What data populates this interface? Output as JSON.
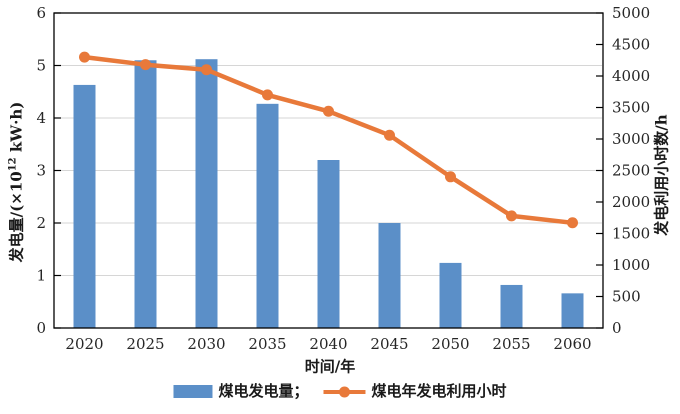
{
  "chart_data": {
    "type": "bar+line",
    "categories": [
      "2020",
      "2025",
      "2030",
      "2035",
      "2040",
      "2045",
      "2050",
      "2055",
      "2060"
    ],
    "series": [
      {
        "name": "煤电发电量",
        "type": "bar",
        "axis": "left",
        "color": "#5B8FC8",
        "values": [
          4.63,
          5.1,
          5.12,
          4.27,
          3.2,
          2.0,
          1.24,
          0.82,
          0.66
        ]
      },
      {
        "name": "煤电年发电利用小时",
        "type": "line",
        "axis": "right",
        "color": "#E8793A",
        "values": [
          4300,
          4180,
          4100,
          3700,
          3440,
          3060,
          2400,
          1780,
          1670
        ]
      }
    ],
    "x_axis": {
      "title": "时间/年",
      "tick_labels": [
        "2020",
        "2025",
        "2030",
        "2035",
        "2040",
        "2045",
        "2050",
        "2055",
        "2060"
      ]
    },
    "y_axis_left": {
      "title": "发电量/(×10¹² kW·h)",
      "title_parts": {
        "pre": "发电量/(×10",
        "sup": "12",
        "post": " kW·h)"
      },
      "min": 0,
      "max": 6,
      "step": 1,
      "tick_labels": [
        "0",
        "1",
        "2",
        "3",
        "4",
        "5",
        "6"
      ]
    },
    "y_axis_right": {
      "title": "发电利用小时数/h",
      "min": 0,
      "max": 5000,
      "step": 500,
      "tick_labels": [
        "0",
        "500",
        "1000",
        "1500",
        "2000",
        "2500",
        "3000",
        "3500",
        "4000",
        "4500",
        "5000"
      ]
    },
    "legend": {
      "position": "bottom",
      "items": [
        {
          "label": "煤电发电量；",
          "swatch": "bar",
          "series_index": 0
        },
        {
          "label": "煤电年发电利用小时",
          "swatch": "line-marker",
          "series_index": 1
        }
      ]
    },
    "grid": {
      "horizontal": true,
      "at_left_values": [
        1,
        2,
        3,
        4,
        5
      ],
      "color": "#D6D6D6"
    }
  },
  "colors": {
    "bar_blue": "#5B8FC8",
    "line_orange": "#E8793A",
    "grid": "#D6D6D6",
    "axis": "#000000",
    "text": "#262626"
  }
}
